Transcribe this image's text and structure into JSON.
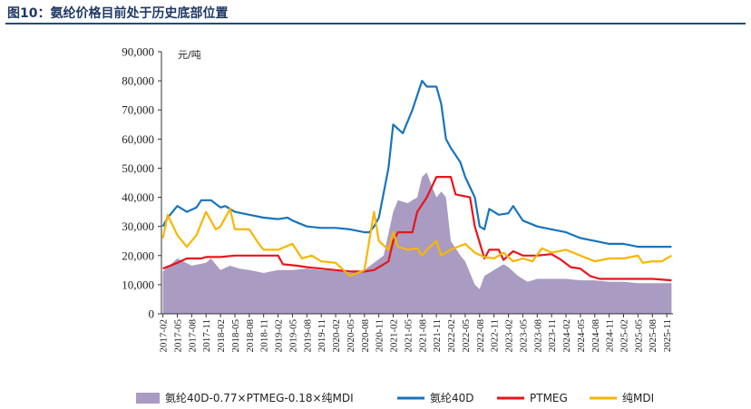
{
  "figure": {
    "title": "图10：氨纶价格目前处于历史底部位置"
  },
  "chart_data": {
    "type": "line",
    "unit_label": "元/吨",
    "ylim": [
      0,
      90000
    ],
    "yticks": [
      "0",
      "10,000",
      "20,000",
      "30,000",
      "40,000",
      "50,000",
      "60,000",
      "70,000",
      "80,000",
      "90,000"
    ],
    "xlim": [
      "2017-02",
      "2025-12"
    ],
    "xticks": [
      "2017-02",
      "2017-05",
      "2017-08",
      "2017-11",
      "2018-02",
      "2018-05",
      "2018-08",
      "2018-11",
      "2019-02",
      "2019-05",
      "2019-08",
      "2019-11",
      "2020-02",
      "2020-05",
      "2020-08",
      "2020-11",
      "2021-02",
      "2021-05",
      "2021-08",
      "2021-11",
      "2022-02",
      "2022-05",
      "2022-08",
      "2022-11",
      "2023-02",
      "2023-05",
      "2023-08",
      "2023-11",
      "2024-02",
      "2024-05",
      "2024-08",
      "2024-11",
      "2025-02",
      "2025-05",
      "2025-08",
      "2025-11"
    ],
    "grid": false,
    "legend_position": "bottom",
    "series": [
      {
        "name": "氨纶40D-0.77×PTMEG-0.18×纯MDI",
        "kind": "area",
        "color": "#a99bc2",
        "points": [
          [
            "2017-02",
            14500
          ],
          [
            "2017-05",
            19000
          ],
          [
            "2017-08",
            16500
          ],
          [
            "2017-11",
            17500
          ],
          [
            "2017-12",
            19000
          ],
          [
            "2018-02",
            15000
          ],
          [
            "2018-04",
            16500
          ],
          [
            "2018-06",
            15500
          ],
          [
            "2018-08",
            15000
          ],
          [
            "2018-11",
            14000
          ],
          [
            "2019-02",
            15000
          ],
          [
            "2019-05",
            15000
          ],
          [
            "2019-08",
            15500
          ],
          [
            "2019-11",
            15000
          ],
          [
            "2020-02",
            15000
          ],
          [
            "2020-05",
            14000
          ],
          [
            "2020-08",
            15000
          ],
          [
            "2020-10",
            17500
          ],
          [
            "2020-12",
            20000
          ],
          [
            "2021-02",
            35000
          ],
          [
            "2021-03",
            39000
          ],
          [
            "2021-05",
            38000
          ],
          [
            "2021-07",
            40000
          ],
          [
            "2021-08",
            47000
          ],
          [
            "2021-09",
            48500
          ],
          [
            "2021-10",
            44000
          ],
          [
            "2021-11",
            40000
          ],
          [
            "2021-12",
            42000
          ],
          [
            "2022-01",
            40000
          ],
          [
            "2022-02",
            25000
          ],
          [
            "2022-04",
            20000
          ],
          [
            "2022-05",
            18000
          ],
          [
            "2022-07",
            10000
          ],
          [
            "2022-08",
            8500
          ],
          [
            "2022-09",
            13000
          ],
          [
            "2022-11",
            15000
          ],
          [
            "2023-01",
            17000
          ],
          [
            "2023-02",
            16000
          ],
          [
            "2023-04",
            13000
          ],
          [
            "2023-06",
            11000
          ],
          [
            "2023-08",
            12000
          ],
          [
            "2023-11",
            12000
          ],
          [
            "2024-02",
            12000
          ],
          [
            "2024-05",
            11500
          ],
          [
            "2024-08",
            11500
          ],
          [
            "2024-11",
            11000
          ],
          [
            "2025-02",
            11000
          ],
          [
            "2025-05",
            10500
          ],
          [
            "2025-08",
            10500
          ],
          [
            "2025-12",
            10500
          ]
        ]
      },
      {
        "name": "氨纶40D",
        "kind": "line",
        "color": "#1874bd",
        "points": [
          [
            "2017-02",
            30000
          ],
          [
            "2017-03",
            33000
          ],
          [
            "2017-05",
            37000
          ],
          [
            "2017-07",
            35000
          ],
          [
            "2017-09",
            36500
          ],
          [
            "2017-10",
            39000
          ],
          [
            "2017-12",
            39000
          ],
          [
            "2018-02",
            36500
          ],
          [
            "2018-03",
            37000
          ],
          [
            "2018-05",
            35000
          ],
          [
            "2018-08",
            34000
          ],
          [
            "2018-11",
            33000
          ],
          [
            "2019-02",
            32500
          ],
          [
            "2019-04",
            33000
          ],
          [
            "2019-05",
            32000
          ],
          [
            "2019-08",
            30000
          ],
          [
            "2019-11",
            29500
          ],
          [
            "2020-02",
            29500
          ],
          [
            "2020-05",
            29000
          ],
          [
            "2020-08",
            28000
          ],
          [
            "2020-09",
            28000
          ],
          [
            "2020-10",
            30000
          ],
          [
            "2020-11",
            33000
          ],
          [
            "2021-01",
            50000
          ],
          [
            "2021-02",
            65000
          ],
          [
            "2021-04",
            62000
          ],
          [
            "2021-06",
            70000
          ],
          [
            "2021-08",
            80000
          ],
          [
            "2021-09",
            78000
          ],
          [
            "2021-11",
            78000
          ],
          [
            "2021-12",
            72000
          ],
          [
            "2022-01",
            60000
          ],
          [
            "2022-02",
            57000
          ],
          [
            "2022-04",
            52000
          ],
          [
            "2022-05",
            47000
          ],
          [
            "2022-07",
            40000
          ],
          [
            "2022-08",
            30000
          ],
          [
            "2022-09",
            29000
          ],
          [
            "2022-10",
            36000
          ],
          [
            "2022-12",
            34000
          ],
          [
            "2023-02",
            34500
          ],
          [
            "2023-03",
            37000
          ],
          [
            "2023-05",
            32000
          ],
          [
            "2023-08",
            30000
          ],
          [
            "2023-11",
            29000
          ],
          [
            "2024-02",
            28000
          ],
          [
            "2024-05",
            26000
          ],
          [
            "2024-08",
            25000
          ],
          [
            "2024-11",
            24000
          ],
          [
            "2025-02",
            24000
          ],
          [
            "2025-05",
            23000
          ],
          [
            "2025-08",
            23000
          ],
          [
            "2025-12",
            23000
          ]
        ]
      },
      {
        "name": "PTMEG",
        "kind": "line",
        "color": "#e8151b",
        "points": [
          [
            "2017-02",
            15500
          ],
          [
            "2017-05",
            17500
          ],
          [
            "2017-07",
            19000
          ],
          [
            "2017-10",
            19000
          ],
          [
            "2017-11",
            19500
          ],
          [
            "2018-02",
            19500
          ],
          [
            "2018-05",
            20000
          ],
          [
            "2018-11",
            20000
          ],
          [
            "2019-02",
            20000
          ],
          [
            "2019-03",
            17000
          ],
          [
            "2019-06",
            16500
          ],
          [
            "2019-08",
            16000
          ],
          [
            "2019-11",
            15500
          ],
          [
            "2020-02",
            15000
          ],
          [
            "2020-05",
            14500
          ],
          [
            "2020-08",
            14500
          ],
          [
            "2020-10",
            15000
          ],
          [
            "2020-12",
            17000
          ],
          [
            "2021-01",
            18000
          ],
          [
            "2021-02",
            25000
          ],
          [
            "2021-03",
            28000
          ],
          [
            "2021-06",
            28000
          ],
          [
            "2021-07",
            35000
          ],
          [
            "2021-09",
            40000
          ],
          [
            "2021-11",
            47000
          ],
          [
            "2022-02",
            47000
          ],
          [
            "2022-03",
            41000
          ],
          [
            "2022-06",
            40000
          ],
          [
            "2022-07",
            30000
          ],
          [
            "2022-09",
            19000
          ],
          [
            "2022-10",
            22000
          ],
          [
            "2022-12",
            22000
          ],
          [
            "2023-01",
            18500
          ],
          [
            "2023-03",
            21500
          ],
          [
            "2023-05",
            20000
          ],
          [
            "2023-08",
            20000
          ],
          [
            "2023-11",
            20500
          ],
          [
            "2024-01",
            18500
          ],
          [
            "2024-03",
            16000
          ],
          [
            "2024-05",
            15500
          ],
          [
            "2024-07",
            13000
          ],
          [
            "2024-09",
            12000
          ],
          [
            "2024-11",
            12000
          ],
          [
            "2025-02",
            12000
          ],
          [
            "2025-05",
            12000
          ],
          [
            "2025-08",
            12000
          ],
          [
            "2025-12",
            11500
          ]
        ]
      },
      {
        "name": "纯MDI",
        "kind": "line",
        "color": "#f8b600",
        "points": [
          [
            "2017-02",
            26000
          ],
          [
            "2017-03",
            34000
          ],
          [
            "2017-05",
            27000
          ],
          [
            "2017-07",
            23000
          ],
          [
            "2017-09",
            27000
          ],
          [
            "2017-11",
            35000
          ],
          [
            "2018-01",
            29000
          ],
          [
            "2018-02",
            30000
          ],
          [
            "2018-04",
            36000
          ],
          [
            "2018-05",
            29000
          ],
          [
            "2018-08",
            29000
          ],
          [
            "2018-10",
            24000
          ],
          [
            "2018-11",
            22000
          ],
          [
            "2019-02",
            22000
          ],
          [
            "2019-05",
            24000
          ],
          [
            "2019-07",
            19000
          ],
          [
            "2019-09",
            20000
          ],
          [
            "2019-11",
            18000
          ],
          [
            "2020-02",
            17500
          ],
          [
            "2020-05",
            13000
          ],
          [
            "2020-08",
            15000
          ],
          [
            "2020-10",
            35000
          ],
          [
            "2020-11",
            25000
          ],
          [
            "2021-01",
            22000
          ],
          [
            "2021-02",
            28000
          ],
          [
            "2021-03",
            23000
          ],
          [
            "2021-05",
            22000
          ],
          [
            "2021-07",
            22500
          ],
          [
            "2021-08",
            20000
          ],
          [
            "2021-09",
            22000
          ],
          [
            "2021-11",
            25000
          ],
          [
            "2021-12",
            20000
          ],
          [
            "2022-02",
            22000
          ],
          [
            "2022-05",
            24000
          ],
          [
            "2022-07",
            21000
          ],
          [
            "2022-09",
            19500
          ],
          [
            "2022-11",
            19000
          ],
          [
            "2023-01",
            21000
          ],
          [
            "2023-03",
            18000
          ],
          [
            "2023-05",
            19000
          ],
          [
            "2023-07",
            18000
          ],
          [
            "2023-09",
            22500
          ],
          [
            "2023-11",
            21000
          ],
          [
            "2024-02",
            22000
          ],
          [
            "2024-05",
            20000
          ],
          [
            "2024-08",
            18000
          ],
          [
            "2024-11",
            19000
          ],
          [
            "2025-02",
            19000
          ],
          [
            "2025-05",
            20000
          ],
          [
            "2025-06",
            17500
          ],
          [
            "2025-08",
            18000
          ],
          [
            "2025-10",
            18000
          ],
          [
            "2025-12",
            20000
          ]
        ]
      }
    ]
  }
}
